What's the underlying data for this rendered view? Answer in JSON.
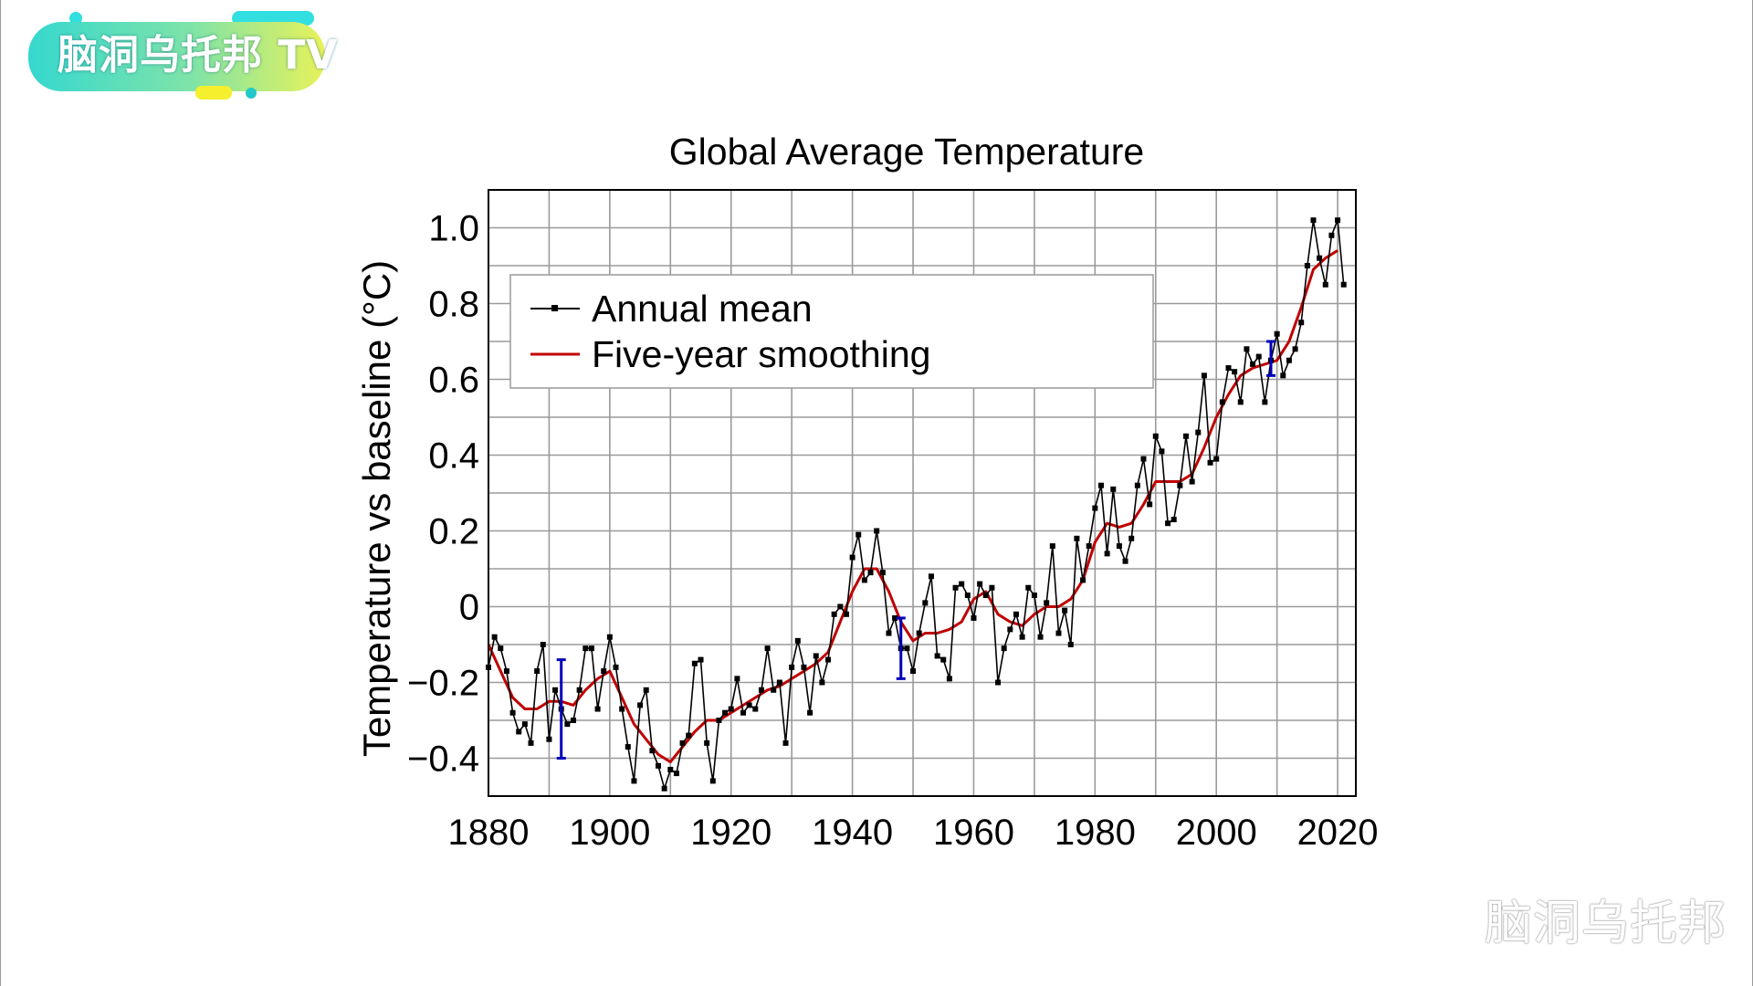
{
  "branding": {
    "logo_text": "脑洞乌托邦 TV",
    "watermark": "脑洞乌托邦"
  },
  "chart_data": {
    "type": "line",
    "title": "Global Average Temperature",
    "xlabel": "",
    "ylabel": "Temperature vs baseline (°C)",
    "xlim": [
      1880,
      2023
    ],
    "ylim": [
      -0.5,
      1.1
    ],
    "xticks": [
      1880,
      1900,
      1920,
      1940,
      1960,
      1980,
      2000,
      2020
    ],
    "xtick_labels": [
      "1880",
      "1900",
      "1920",
      "1940",
      "1960",
      "1980",
      "2000",
      "2020"
    ],
    "yticks": [
      1.0,
      0.8,
      0.6,
      0.4,
      0.2,
      0,
      -0.2,
      -0.4
    ],
    "ytick_labels": [
      "1.0",
      "0.8",
      "0.6",
      "0.4",
      "0.2",
      "0",
      "−0.2",
      "−0.4"
    ],
    "grid": true,
    "legend_position": "upper-left",
    "series": [
      {
        "name": "Annual mean",
        "color": "#000000",
        "marker": "square",
        "x": [
          1880,
          1881,
          1882,
          1883,
          1884,
          1885,
          1886,
          1887,
          1888,
          1889,
          1890,
          1891,
          1892,
          1893,
          1894,
          1895,
          1896,
          1897,
          1898,
          1899,
          1900,
          1901,
          1902,
          1903,
          1904,
          1905,
          1906,
          1907,
          1908,
          1909,
          1910,
          1911,
          1912,
          1913,
          1914,
          1915,
          1916,
          1917,
          1918,
          1919,
          1920,
          1921,
          1922,
          1923,
          1924,
          1925,
          1926,
          1927,
          1928,
          1929,
          1930,
          1931,
          1932,
          1933,
          1934,
          1935,
          1936,
          1937,
          1938,
          1939,
          1940,
          1941,
          1942,
          1943,
          1944,
          1945,
          1946,
          1947,
          1948,
          1949,
          1950,
          1951,
          1952,
          1953,
          1954,
          1955,
          1956,
          1957,
          1958,
          1959,
          1960,
          1961,
          1962,
          1963,
          1964,
          1965,
          1966,
          1967,
          1968,
          1969,
          1970,
          1971,
          1972,
          1973,
          1974,
          1975,
          1976,
          1977,
          1978,
          1979,
          1980,
          1981,
          1982,
          1983,
          1984,
          1985,
          1986,
          1987,
          1988,
          1989,
          1990,
          1991,
          1992,
          1993,
          1994,
          1995,
          1996,
          1997,
          1998,
          1999,
          2000,
          2001,
          2002,
          2003,
          2004,
          2005,
          2006,
          2007,
          2008,
          2009,
          2010,
          2011,
          2012,
          2013,
          2014,
          2015,
          2016,
          2017,
          2018,
          2019,
          2020,
          2021
        ],
        "values": [
          -0.16,
          -0.08,
          -0.11,
          -0.17,
          -0.28,
          -0.33,
          -0.31,
          -0.36,
          -0.17,
          -0.1,
          -0.35,
          -0.22,
          -0.27,
          -0.31,
          -0.3,
          -0.22,
          -0.11,
          -0.11,
          -0.27,
          -0.17,
          -0.08,
          -0.16,
          -0.27,
          -0.37,
          -0.46,
          -0.26,
          -0.22,
          -0.38,
          -0.42,
          -0.48,
          -0.43,
          -0.44,
          -0.36,
          -0.34,
          -0.15,
          -0.14,
          -0.36,
          -0.46,
          -0.3,
          -0.28,
          -0.27,
          -0.19,
          -0.28,
          -0.26,
          -0.27,
          -0.22,
          -0.11,
          -0.22,
          -0.2,
          -0.36,
          -0.16,
          -0.09,
          -0.16,
          -0.28,
          -0.13,
          -0.2,
          -0.14,
          -0.02,
          -0.0,
          -0.02,
          0.13,
          0.19,
          0.07,
          0.09,
          0.2,
          0.09,
          -0.07,
          -0.03,
          -0.11,
          -0.11,
          -0.17,
          -0.07,
          0.01,
          0.08,
          -0.13,
          -0.14,
          -0.19,
          0.05,
          0.06,
          0.03,
          -0.03,
          0.06,
          0.03,
          0.05,
          -0.2,
          -0.11,
          -0.06,
          -0.02,
          -0.08,
          0.05,
          0.03,
          -0.08,
          0.01,
          0.16,
          -0.07,
          -0.01,
          -0.1,
          0.18,
          0.07,
          0.16,
          0.26,
          0.32,
          0.14,
          0.31,
          0.16,
          0.12,
          0.18,
          0.32,
          0.39,
          0.27,
          0.45,
          0.41,
          0.22,
          0.23,
          0.32,
          0.45,
          0.33,
          0.46,
          0.61,
          0.38,
          0.39,
          0.54,
          0.63,
          0.62,
          0.54,
          0.68,
          0.64,
          0.66,
          0.54,
          0.65,
          0.72,
          0.61,
          0.65,
          0.68,
          0.75,
          0.9,
          1.02,
          0.92,
          0.85,
          0.98,
          1.02,
          0.85
        ]
      },
      {
        "name": "Five-year smoothing",
        "color": "#c00000",
        "x": [
          1880,
          1882,
          1884,
          1886,
          1888,
          1890,
          1892,
          1894,
          1896,
          1898,
          1900,
          1902,
          1904,
          1906,
          1908,
          1910,
          1912,
          1914,
          1916,
          1918,
          1920,
          1922,
          1924,
          1926,
          1928,
          1930,
          1932,
          1934,
          1936,
          1938,
          1940,
          1942,
          1944,
          1946,
          1948,
          1950,
          1952,
          1954,
          1956,
          1958,
          1960,
          1962,
          1964,
          1966,
          1968,
          1970,
          1972,
          1974,
          1976,
          1978,
          1980,
          1982,
          1984,
          1986,
          1988,
          1990,
          1992,
          1994,
          1996,
          1998,
          2000,
          2002,
          2004,
          2006,
          2008,
          2010,
          2012,
          2014,
          2016,
          2018,
          2020
        ],
        "values": [
          -0.1,
          -0.17,
          -0.24,
          -0.27,
          -0.27,
          -0.25,
          -0.25,
          -0.26,
          -0.22,
          -0.19,
          -0.17,
          -0.24,
          -0.31,
          -0.35,
          -0.39,
          -0.41,
          -0.37,
          -0.33,
          -0.3,
          -0.3,
          -0.28,
          -0.26,
          -0.24,
          -0.22,
          -0.21,
          -0.19,
          -0.17,
          -0.15,
          -0.12,
          -0.04,
          0.04,
          0.1,
          0.1,
          0.04,
          -0.04,
          -0.09,
          -0.07,
          -0.07,
          -0.06,
          -0.04,
          0.02,
          0.04,
          -0.02,
          -0.04,
          -0.05,
          -0.02,
          0.0,
          0.0,
          0.02,
          0.07,
          0.17,
          0.22,
          0.21,
          0.22,
          0.27,
          0.33,
          0.33,
          0.33,
          0.35,
          0.42,
          0.5,
          0.56,
          0.61,
          0.63,
          0.64,
          0.65,
          0.7,
          0.79,
          0.89,
          0.92,
          0.94
        ]
      }
    ],
    "error_bars": [
      {
        "x": 1892,
        "low": -0.4,
        "high": -0.14,
        "color": "#0000bb"
      },
      {
        "x": 1948,
        "low": -0.19,
        "high": -0.03,
        "color": "#0000bb"
      },
      {
        "x": 2009,
        "low": 0.61,
        "high": 0.7,
        "color": "#0000bb"
      }
    ]
  }
}
